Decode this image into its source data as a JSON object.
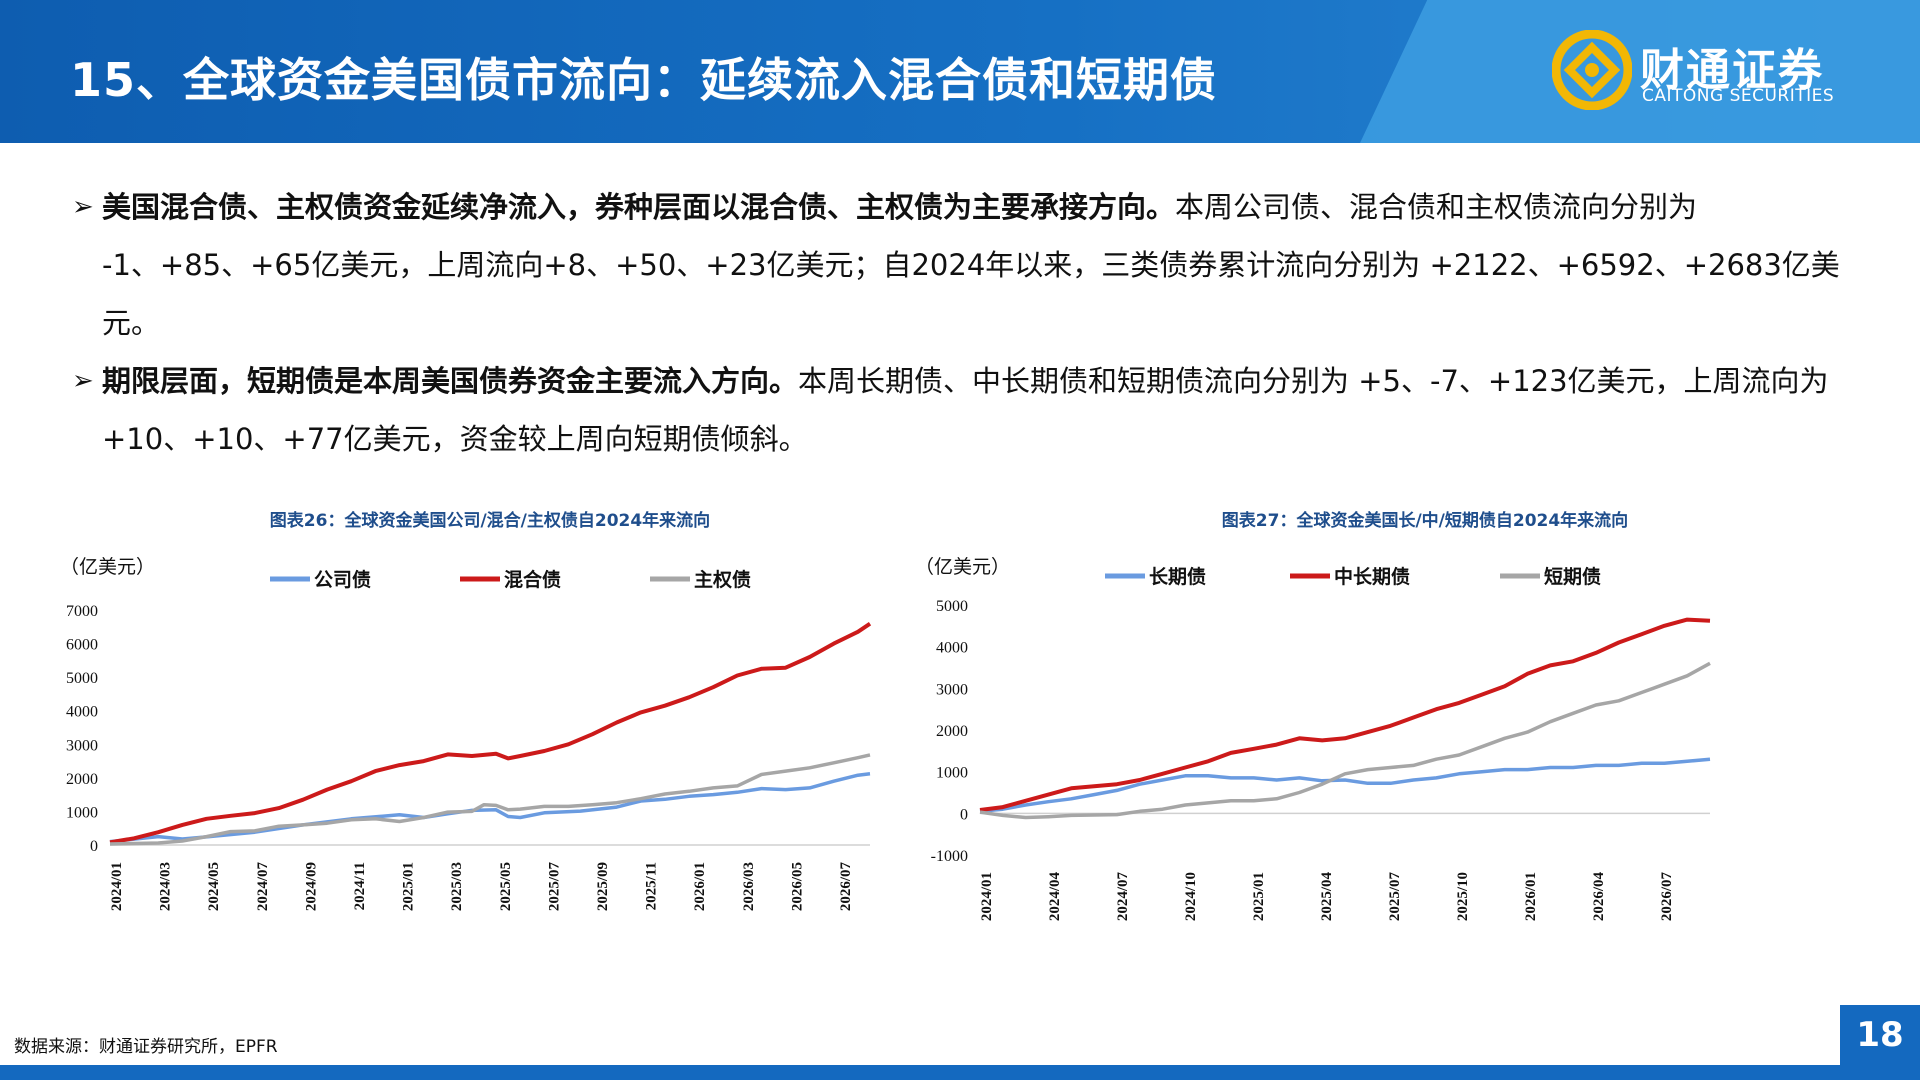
{
  "header": {
    "title": "15、全球资金美国债市流向：延续流入混合债和短期债",
    "logo_cn": "财通证券",
    "logo_en": "CAITONG SECURITIES",
    "colors": {
      "brand_blue": "#1469bf",
      "logo_gold": "#f2b705"
    }
  },
  "bullets": [
    {
      "bold": "美国混合债、主权债资金延续净流入，券种层面以混合债、主权债为主要承接方向。",
      "text": "本周公司债、混合债和主权债流向分别为 -1、+85、+65亿美元，上周流向+8、+50、+23亿美元；自2024年以来，三类债券累计流向分别为 +2122、+6592、+2683亿美元。"
    },
    {
      "bold": "期限层面，短期债是本周美国债券资金主要流入方向。",
      "text": "本周长期债、中长期债和短期债流向分别为 +5、-7、+123亿美元，上周流向为 +10、+10、+77亿美元，资金较上周向短期债倾斜。"
    }
  ],
  "chart_data": [
    {
      "type": "line",
      "title": "图表26：全球资金美国公司/混合/主权债自2024年来流向",
      "unit_label": "（亿美元）",
      "ylim": [
        0,
        7000
      ],
      "yticks": [
        0,
        1000,
        2000,
        3000,
        4000,
        5000,
        6000,
        7000
      ],
      "x_tick_labels": [
        "2024/01",
        "2024/03",
        "2024/05",
        "2024/07",
        "2024/09",
        "2024/11",
        "2025/01",
        "2025/03",
        "2025/05",
        "2025/07",
        "2025/09",
        "2025/11",
        "2026/01",
        "2026/03",
        "2026/05",
        "2026/07"
      ],
      "x_range": [
        0,
        31.5
      ],
      "legend": "top",
      "series": [
        {
          "name": "公司债",
          "color": "#6a9be0",
          "points": [
            [
              0,
              100
            ],
            [
              2,
              250
            ],
            [
              3,
              180
            ],
            [
              4,
              240
            ],
            [
              6,
              380
            ],
            [
              8,
              600
            ],
            [
              10,
              780
            ],
            [
              12,
              900
            ],
            [
              13,
              820
            ],
            [
              14,
              930
            ],
            [
              15,
              1030
            ],
            [
              16,
              1050
            ],
            [
              16.5,
              850
            ],
            [
              17,
              820
            ],
            [
              18,
              960
            ],
            [
              19.5,
              1010
            ],
            [
              21,
              1130
            ],
            [
              22,
              1310
            ],
            [
              23,
              1360
            ],
            [
              24,
              1450
            ],
            [
              25,
              1500
            ],
            [
              26,
              1570
            ],
            [
              27,
              1680
            ],
            [
              28,
              1650
            ],
            [
              29,
              1700
            ],
            [
              30,
              1900
            ],
            [
              31,
              2080
            ],
            [
              31.5,
              2122
            ]
          ]
        },
        {
          "name": "混合债",
          "color": "#cc1a1a",
          "points": [
            [
              0,
              80
            ],
            [
              1,
              200
            ],
            [
              2,
              380
            ],
            [
              3,
              600
            ],
            [
              4,
              780
            ],
            [
              5,
              870
            ],
            [
              6,
              950
            ],
            [
              7,
              1100
            ],
            [
              8,
              1350
            ],
            [
              9,
              1650
            ],
            [
              10,
              1900
            ],
            [
              11,
              2200
            ],
            [
              12,
              2380
            ],
            [
              13,
              2500
            ],
            [
              14,
              2700
            ],
            [
              15,
              2650
            ],
            [
              16,
              2720
            ],
            [
              16.5,
              2580
            ],
            [
              17,
              2650
            ],
            [
              18,
              2800
            ],
            [
              19,
              3000
            ],
            [
              20,
              3300
            ],
            [
              21,
              3650
            ],
            [
              22,
              3950
            ],
            [
              23,
              4150
            ],
            [
              24,
              4400
            ],
            [
              25,
              4700
            ],
            [
              26,
              5050
            ],
            [
              27,
              5250
            ],
            [
              28,
              5280
            ],
            [
              29,
              5600
            ],
            [
              30,
              6000
            ],
            [
              31,
              6350
            ],
            [
              31.5,
              6592
            ]
          ]
        },
        {
          "name": "主权债",
          "color": "#a6a6a6",
          "points": [
            [
              0,
              30
            ],
            [
              2,
              60
            ],
            [
              3,
              120
            ],
            [
              4,
              250
            ],
            [
              5,
              400
            ],
            [
              6,
              420
            ],
            [
              7,
              560
            ],
            [
              8,
              600
            ],
            [
              9,
              650
            ],
            [
              10,
              750
            ],
            [
              11,
              780
            ],
            [
              12,
              700
            ],
            [
              13,
              820
            ],
            [
              14,
              980
            ],
            [
              15,
              1000
            ],
            [
              15.5,
              1200
            ],
            [
              16,
              1180
            ],
            [
              16.5,
              1050
            ],
            [
              17,
              1070
            ],
            [
              18,
              1150
            ],
            [
              19,
              1150
            ],
            [
              20,
              1200
            ],
            [
              21,
              1260
            ],
            [
              22,
              1380
            ],
            [
              23,
              1520
            ],
            [
              24,
              1600
            ],
            [
              25,
              1700
            ],
            [
              26,
              1760
            ],
            [
              27,
              2100
            ],
            [
              28,
              2200
            ],
            [
              29,
              2300
            ],
            [
              30,
              2450
            ],
            [
              31,
              2600
            ],
            [
              31.5,
              2683
            ]
          ]
        }
      ]
    },
    {
      "type": "line",
      "title": "图表27：全球资金美国长/中/短期债自2024年来流向",
      "unit_label": "（亿美元）",
      "ylim": [
        -1000,
        5000
      ],
      "yticks": [
        -1000,
        0,
        1000,
        2000,
        3000,
        4000,
        5000
      ],
      "x_tick_labels": [
        "2024/01",
        "2024/04",
        "2024/07",
        "2024/10",
        "2025/01",
        "2025/04",
        "2025/07",
        "2025/10",
        "2026/01",
        "2026/04",
        "2026/07"
      ],
      "x_range": [
        0,
        32
      ],
      "legend": "top",
      "series": [
        {
          "name": "长期债",
          "color": "#6a9be0",
          "points": [
            [
              0,
              50
            ],
            [
              1,
              100
            ],
            [
              2,
              200
            ],
            [
              3,
              280
            ],
            [
              4,
              350
            ],
            [
              5,
              450
            ],
            [
              6,
              550
            ],
            [
              7,
              700
            ],
            [
              8,
              800
            ],
            [
              9,
              900
            ],
            [
              10,
              900
            ],
            [
              11,
              850
            ],
            [
              12,
              850
            ],
            [
              13,
              800
            ],
            [
              14,
              850
            ],
            [
              15,
              780
            ],
            [
              16,
              800
            ],
            [
              17,
              720
            ],
            [
              18,
              720
            ],
            [
              19,
              800
            ],
            [
              20,
              850
            ],
            [
              21,
              950
            ],
            [
              22,
              1000
            ],
            [
              23,
              1050
            ],
            [
              24,
              1050
            ],
            [
              25,
              1100
            ],
            [
              26,
              1100
            ],
            [
              27,
              1150
            ],
            [
              28,
              1150
            ],
            [
              29,
              1200
            ],
            [
              30,
              1200
            ],
            [
              31,
              1250
            ],
            [
              32,
              1300
            ]
          ]
        },
        {
          "name": "中长期债",
          "color": "#cc1a1a",
          "points": [
            [
              0,
              80
            ],
            [
              1,
              150
            ],
            [
              2,
              300
            ],
            [
              3,
              450
            ],
            [
              4,
              600
            ],
            [
              5,
              650
            ],
            [
              6,
              700
            ],
            [
              7,
              800
            ],
            [
              8,
              950
            ],
            [
              9,
              1100
            ],
            [
              10,
              1250
            ],
            [
              11,
              1450
            ],
            [
              12,
              1550
            ],
            [
              13,
              1650
            ],
            [
              14,
              1800
            ],
            [
              15,
              1750
            ],
            [
              16,
              1800
            ],
            [
              17,
              1950
            ],
            [
              18,
              2100
            ],
            [
              19,
              2300
            ],
            [
              20,
              2500
            ],
            [
              21,
              2650
            ],
            [
              22,
              2850
            ],
            [
              23,
              3050
            ],
            [
              24,
              3350
            ],
            [
              25,
              3550
            ],
            [
              26,
              3650
            ],
            [
              27,
              3850
            ],
            [
              28,
              4100
            ],
            [
              29,
              4300
            ],
            [
              30,
              4500
            ],
            [
              31,
              4650
            ],
            [
              32,
              4620
            ]
          ]
        },
        {
          "name": "短期债",
          "color": "#a6a6a6",
          "points": [
            [
              0,
              30
            ],
            [
              1,
              -50
            ],
            [
              2,
              -100
            ],
            [
              3,
              -80
            ],
            [
              4,
              -50
            ],
            [
              5,
              -40
            ],
            [
              6,
              -30
            ],
            [
              7,
              50
            ],
            [
              8,
              100
            ],
            [
              9,
              200
            ],
            [
              10,
              250
            ],
            [
              11,
              300
            ],
            [
              12,
              300
            ],
            [
              13,
              350
            ],
            [
              14,
              500
            ],
            [
              15,
              700
            ],
            [
              16,
              950
            ],
            [
              17,
              1050
            ],
            [
              18,
              1100
            ],
            [
              19,
              1150
            ],
            [
              20,
              1300
            ],
            [
              21,
              1400
            ],
            [
              22,
              1600
            ],
            [
              23,
              1800
            ],
            [
              24,
              1950
            ],
            [
              25,
              2200
            ],
            [
              26,
              2400
            ],
            [
              27,
              2600
            ],
            [
              28,
              2700
            ],
            [
              29,
              2900
            ],
            [
              30,
              3100
            ],
            [
              31,
              3300
            ],
            [
              32,
              3600
            ]
          ]
        }
      ]
    }
  ],
  "footer": {
    "source": "数据来源：财通证券研究所，EPFR",
    "page_number": "18"
  }
}
